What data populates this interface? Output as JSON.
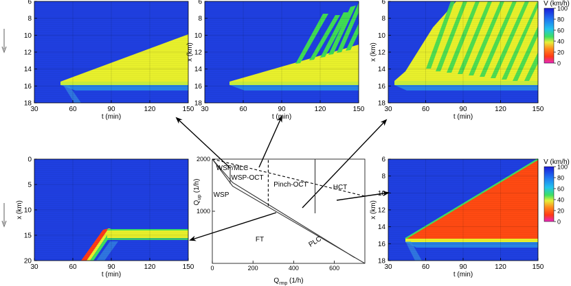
{
  "colorbar": {
    "title": "V (km/h)",
    "ticks": [
      "100",
      "80",
      "60",
      "40",
      "20",
      "0"
    ],
    "stops": [
      "#1b1bd6",
      "#1f6cf0",
      "#22c3ee",
      "#3fe060",
      "#e6f03a",
      "#ff8a1e",
      "#ff3a16",
      "#e628c0"
    ]
  },
  "chart_data": [
    {
      "id": "top-left",
      "type": "heatmap",
      "xlabel": "t (min)",
      "ylabel": "",
      "xlim": [
        30,
        150
      ],
      "ylim": [
        18,
        6
      ],
      "xticks": [
        "30",
        "60",
        "90",
        "120",
        "150"
      ],
      "yticks": [
        "6",
        "8",
        "10",
        "12",
        "14",
        "16",
        "18"
      ],
      "pattern": "WSP"
    },
    {
      "id": "top-mid",
      "type": "heatmap",
      "xlabel": "t (min)",
      "ylabel": "x (km)",
      "xlim": [
        30,
        150
      ],
      "ylim": [
        18,
        6
      ],
      "xticks": [
        "30",
        "60",
        "90",
        "120",
        "150"
      ],
      "yticks": [
        "6",
        "8",
        "10",
        "12",
        "14",
        "16",
        "18"
      ],
      "pattern": "WSP-OCT"
    },
    {
      "id": "top-right",
      "type": "heatmap",
      "xlabel": "t (min)",
      "ylabel": "x (km)",
      "xlim": [
        30,
        150
      ],
      "ylim": [
        18,
        6
      ],
      "xticks": [
        "30",
        "60",
        "90",
        "120",
        "150"
      ],
      "yticks": [
        "6",
        "8",
        "10",
        "12",
        "14",
        "16",
        "18"
      ],
      "pattern": "Pinch-OCT"
    },
    {
      "id": "bottom-left",
      "type": "heatmap",
      "xlabel": "t (min)",
      "ylabel": "x (km)",
      "xlim": [
        30,
        150
      ],
      "ylim": [
        20,
        0
      ],
      "xticks": [
        "30",
        "60",
        "90",
        "120",
        "150"
      ],
      "yticks": [
        "0",
        "5",
        "10",
        "15",
        "20"
      ],
      "pattern": "MLC"
    },
    {
      "id": "bottom-right",
      "type": "heatmap",
      "xlabel": "t (min)",
      "ylabel": "x (km)",
      "xlim": [
        30,
        150
      ],
      "ylim": [
        18,
        6
      ],
      "xticks": [
        "30",
        "60",
        "90",
        "120",
        "150"
      ],
      "yticks": [
        "6",
        "8",
        "10",
        "12",
        "14",
        "16",
        "18"
      ],
      "pattern": "HCT"
    },
    {
      "id": "phase-diagram",
      "type": "line",
      "xlabel": "Q_rmp (1/h)",
      "ylabel": "Q_up (1/h)",
      "xlabel_main": "Q",
      "xlabel_sub": "rmp",
      "xlabel_unit": " (1/h)",
      "ylabel_main": "Q",
      "ylabel_sub": "up",
      "ylabel_unit": " (1/h)",
      "xlim": [
        0,
        750
      ],
      "ylim": [
        0,
        2000
      ],
      "xticks": [
        "0",
        "200",
        "400",
        "600"
      ],
      "yticks": [
        "1000",
        "2000"
      ],
      "regions": [
        "WSP/MLC",
        "WSP-OCT",
        "Pinch-OCT",
        "HCT",
        "WSP",
        "FT",
        "PLC"
      ],
      "boundaries": [
        {
          "style": "solid",
          "x": [
            0,
            100,
            750
          ],
          "y": [
            2000,
            1480,
            0
          ]
        },
        {
          "style": "solid",
          "x": [
            0,
            100,
            700
          ],
          "y": [
            2000,
            1550,
            110
          ]
        },
        {
          "style": "dashed",
          "x": [
            0,
            750
          ],
          "y": [
            2000,
            1290
          ]
        },
        {
          "style": "solid",
          "x": [
            88,
            88
          ],
          "y": [
            1530,
            1840
          ]
        },
        {
          "style": "dashed",
          "x": [
            275,
            275
          ],
          "y": [
            1100,
            2000
          ]
        },
        {
          "style": "solid",
          "x": [
            505,
            505
          ],
          "y": [
            960,
            2000
          ]
        }
      ]
    }
  ]
}
